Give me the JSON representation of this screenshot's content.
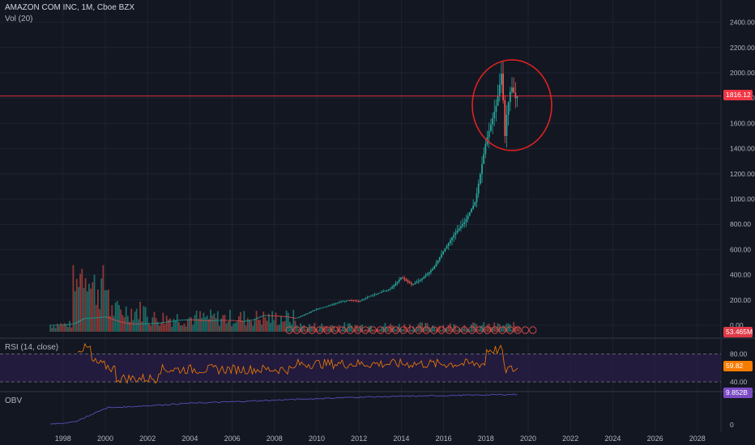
{
  "header": {
    "title": "AMAZON COM INC, 1M, Cboe BZX",
    "vol_label": "Vol (20)",
    "rsi_label": "RSI (14, close)",
    "obv_label": "OBV"
  },
  "colors": {
    "background": "#131722",
    "grid": "#1f2330",
    "up": "#26a69a",
    "down": "#ef5350",
    "vol_up": "#1f7a71",
    "vol_down": "#a23f3c",
    "rsi_line": "#f57c00",
    "rsi_band": "#2a1e4a",
    "obv_line": "#5b4bb5",
    "price_line": "#f23645",
    "circle": "#e02222",
    "vol_tag": "#e03a48",
    "rsi_tag": "#f57c00",
    "obv_tag": "#7b4bc4"
  },
  "tags": {
    "price": "1816.12",
    "volume": "53.465M",
    "rsi": "59.82",
    "obv": "9.852B"
  },
  "chart_data": {
    "type": "candlestick",
    "symbol": "AMAZON COM INC",
    "interval": "1M",
    "exchange": "Cboe BZX",
    "last_price": 1816.12,
    "y_ticks": [
      0,
      200,
      400,
      600,
      800,
      1000,
      1200,
      1400,
      1600,
      1800,
      2000,
      2200,
      2400
    ],
    "y_tick_labels": [
      "0.00",
      "200.00",
      "400.00",
      "600.00",
      "800.00",
      "1000.00",
      "1200.00",
      "1400.00",
      "1600.00",
      "1800.00",
      "2000.00",
      "2200.00",
      "2400.00"
    ],
    "x_ticks": [
      1998,
      2000,
      2002,
      2004,
      2006,
      2008,
      2010,
      2012,
      2014,
      2016,
      2018,
      2020,
      2022,
      2024,
      2026,
      2028
    ],
    "x_tick_labels": [
      "1998",
      "2000",
      "2002",
      "2004",
      "2006",
      "2008",
      "2010",
      "2012",
      "2014",
      "2016",
      "2018",
      "2020",
      "2022",
      "2024",
      "2026",
      "2028"
    ],
    "price_series": [
      [
        1997.4,
        2
      ],
      [
        1998.0,
        4
      ],
      [
        1998.5,
        12
      ],
      [
        1999.0,
        56
      ],
      [
        1999.5,
        60
      ],
      [
        2000.0,
        68
      ],
      [
        2000.5,
        36
      ],
      [
        2001.0,
        15
      ],
      [
        2001.5,
        12
      ],
      [
        2002.0,
        15
      ],
      [
        2002.5,
        18
      ],
      [
        2003.0,
        30
      ],
      [
        2003.5,
        42
      ],
      [
        2004.0,
        45
      ],
      [
        2004.5,
        40
      ],
      [
        2005.0,
        38
      ],
      [
        2005.5,
        42
      ],
      [
        2006.0,
        40
      ],
      [
        2006.5,
        32
      ],
      [
        2007.0,
        45
      ],
      [
        2007.5,
        80
      ],
      [
        2008.0,
        75
      ],
      [
        2008.5,
        70
      ],
      [
        2009.0,
        55
      ],
      [
        2009.5,
        90
      ],
      [
        2010.0,
        130
      ],
      [
        2010.5,
        150
      ],
      [
        2011.0,
        180
      ],
      [
        2011.5,
        200
      ],
      [
        2012.0,
        190
      ],
      [
        2012.5,
        230
      ],
      [
        2013.0,
        260
      ],
      [
        2013.5,
        290
      ],
      [
        2014.0,
        380
      ],
      [
        2014.5,
        320
      ],
      [
        2015.0,
        370
      ],
      [
        2015.5,
        450
      ],
      [
        2016.0,
        590
      ],
      [
        2016.5,
        720
      ],
      [
        2017.0,
        820
      ],
      [
        2017.5,
        980
      ],
      [
        2018.0,
        1450
      ],
      [
        2018.5,
        1750
      ],
      [
        2018.75,
        2010
      ],
      [
        2018.9,
        1500
      ],
      [
        2019.0,
        1700
      ],
      [
        2019.2,
        1900
      ],
      [
        2019.4,
        1800
      ],
      [
        2019.5,
        1816.12
      ]
    ],
    "rsi_ticks": [
      40,
      80
    ],
    "rsi_tick_labels": [
      "40.00",
      "80.00"
    ],
    "rsi_last": 59.82,
    "obv_ticks": [
      0
    ],
    "obv_tick_labels": [
      "0"
    ],
    "obv_last": "9.852B",
    "volume_last": "53.465M",
    "annotation": "circle around 2018–2019 peak"
  }
}
